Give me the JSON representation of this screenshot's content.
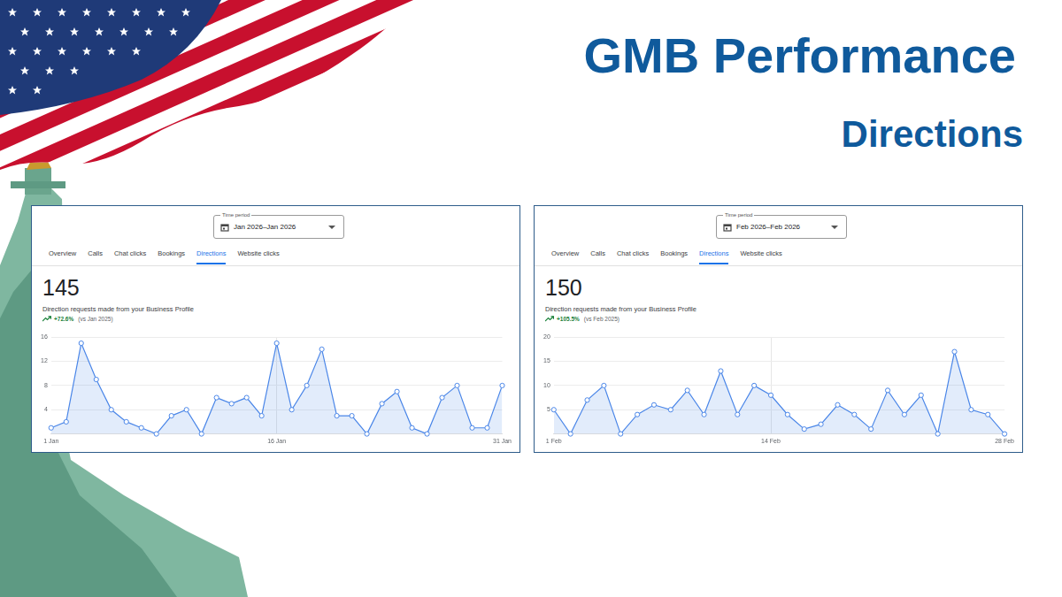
{
  "title": "GMB Performance",
  "subtitle": "Directions",
  "chart_data": [
    {
      "type": "line",
      "time_period_label": "Time period",
      "time_period": "Jan 2026–Jan 2026",
      "tabs": [
        "Overview",
        "Calls",
        "Chat clicks",
        "Bookings",
        "Directions",
        "Website clicks"
      ],
      "active_tab": "Directions",
      "total": 145,
      "description": "Direction requests made from your Business Profile",
      "change": "+72.6%",
      "change_note": "(vs Jan 2025)",
      "categories": [
        "1 Jan",
        null,
        null,
        null,
        null,
        null,
        null,
        null,
        null,
        null,
        null,
        null,
        null,
        null,
        null,
        "16 Jan",
        null,
        null,
        null,
        null,
        null,
        null,
        null,
        null,
        null,
        null,
        null,
        null,
        null,
        null,
        "31 Jan"
      ],
      "values": [
        1,
        2,
        15,
        9,
        4,
        2,
        1,
        0,
        3,
        4,
        0,
        6,
        5,
        6,
        3,
        15,
        4,
        8,
        14,
        3,
        3,
        0,
        5,
        7,
        1,
        0,
        6,
        8,
        1,
        1,
        8
      ],
      "color": "#4a86e8",
      "marker": "circle",
      "ylim": [
        0,
        16
      ],
      "yticks": [
        4,
        8,
        12,
        16
      ],
      "grid": true
    },
    {
      "type": "line",
      "time_period_label": "Time period",
      "time_period": "Feb 2026–Feb 2026",
      "tabs": [
        "Overview",
        "Calls",
        "Chat clicks",
        "Bookings",
        "Directions",
        "Website clicks"
      ],
      "active_tab": "Directions",
      "total": 150,
      "description": "Direction requests made from your Business Profile",
      "change": "+105.5%",
      "change_note": "(vs Feb 2025)",
      "categories": [
        "1 Feb",
        null,
        null,
        null,
        null,
        null,
        null,
        null,
        null,
        null,
        null,
        null,
        null,
        "14 Feb",
        null,
        null,
        null,
        null,
        null,
        null,
        null,
        null,
        null,
        null,
        null,
        null,
        null,
        "28 Feb"
      ],
      "values": [
        5,
        0,
        7,
        10,
        0,
        4,
        6,
        5,
        9,
        4,
        13,
        4,
        10,
        8,
        4,
        1,
        2,
        6,
        4,
        1,
        9,
        4,
        8,
        0,
        17,
        5,
        4,
        0
      ],
      "color": "#4a86e8",
      "marker": "circle",
      "ylim": [
        0,
        20
      ],
      "yticks": [
        5,
        10,
        15,
        20
      ],
      "grid": true
    }
  ]
}
